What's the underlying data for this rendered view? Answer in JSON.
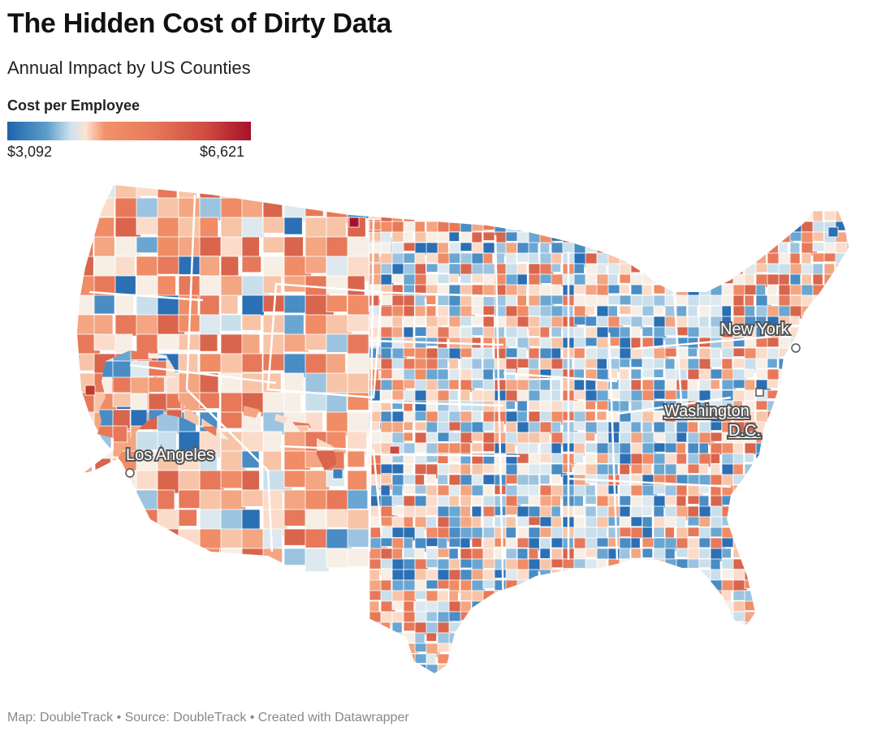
{
  "header": {
    "title": "The Hidden Cost of Dirty Data",
    "subtitle": "Annual Impact by US Counties"
  },
  "legend": {
    "title": "Cost per Employee",
    "min_label": "$3,092",
    "max_label": "$6,621",
    "min_value": 3092,
    "max_value": 6621,
    "colors": [
      "#1f63ad",
      "#5b9dc9",
      "#cde2ee",
      "#fbe3d4",
      "#f2936a",
      "#e7795a",
      "#cf4a41",
      "#a7112a"
    ]
  },
  "map": {
    "type": "choropleth",
    "region": "US Counties",
    "cities": [
      {
        "name": "New York",
        "marker": "circle"
      },
      {
        "name": "Washington D.C.",
        "line1": "Washington",
        "line2": "D.C.",
        "marker": "square"
      },
      {
        "name": "Los Angeles",
        "marker": "circle"
      }
    ]
  },
  "footer": {
    "credit": "Map: DoubleTrack • Source: DoubleTrack • Created with Datawrapper"
  }
}
